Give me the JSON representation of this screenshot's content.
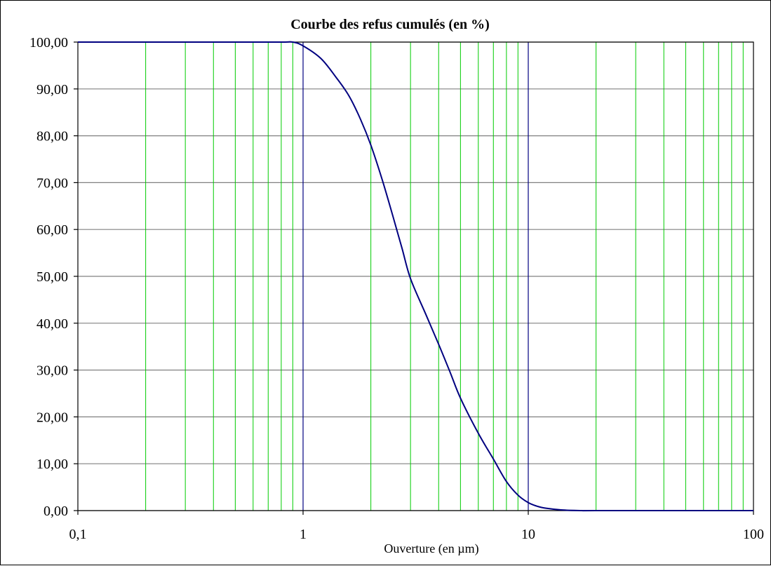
{
  "chart_data": {
    "type": "line",
    "title": "Courbe des refus cumulés (en %)",
    "xlabel": "Ouverture (en µm)",
    "ylabel": "",
    "x_scale": "log",
    "xlim": [
      0.1,
      100
    ],
    "ylim": [
      0,
      100
    ],
    "x_ticks": [
      {
        "value": 0.1,
        "label": "0,1"
      },
      {
        "value": 1,
        "label": "1"
      },
      {
        "value": 10,
        "label": "10"
      },
      {
        "value": 100,
        "label": "100"
      }
    ],
    "y_ticks": [
      {
        "value": 0,
        "label": "0,00"
      },
      {
        "value": 10,
        "label": "10,00"
      },
      {
        "value": 20,
        "label": "20,00"
      },
      {
        "value": 30,
        "label": "30,00"
      },
      {
        "value": 40,
        "label": "40,00"
      },
      {
        "value": 50,
        "label": "50,00"
      },
      {
        "value": 60,
        "label": "60,00"
      },
      {
        "value": 70,
        "label": "70,00"
      },
      {
        "value": 80,
        "label": "80,00"
      },
      {
        "value": 90,
        "label": "90,00"
      },
      {
        "value": 100,
        "label": "100,00"
      }
    ],
    "grid": true,
    "legend": "none",
    "colors": {
      "line": "#000080",
      "major_vertical_grid": "#000080",
      "minor_vertical_grid": "#00cc00",
      "horizontal_grid": "#808080",
      "frame": "#000000"
    },
    "series": [
      {
        "x": [
          0.1,
          0.5,
          0.8,
          0.9,
          1.0,
          1.2,
          1.4,
          1.6,
          1.8,
          2.0,
          2.25,
          2.5,
          2.75,
          3.0,
          3.5,
          4.0,
          4.5,
          5.0,
          6.0,
          7.0,
          8.0,
          9.0,
          10.0,
          11.0,
          12.0,
          14.0,
          17.0,
          20.0,
          50.0,
          100.0
        ],
        "y": [
          100,
          100,
          100,
          100,
          99.2,
          96.5,
          92.5,
          88.5,
          83.5,
          78,
          70.5,
          63,
          56,
          49.5,
          42,
          35.5,
          29.5,
          24,
          16.5,
          11,
          6.2,
          3.3,
          1.7,
          0.9,
          0.5,
          0.15,
          0,
          0,
          0,
          0
        ]
      }
    ]
  }
}
